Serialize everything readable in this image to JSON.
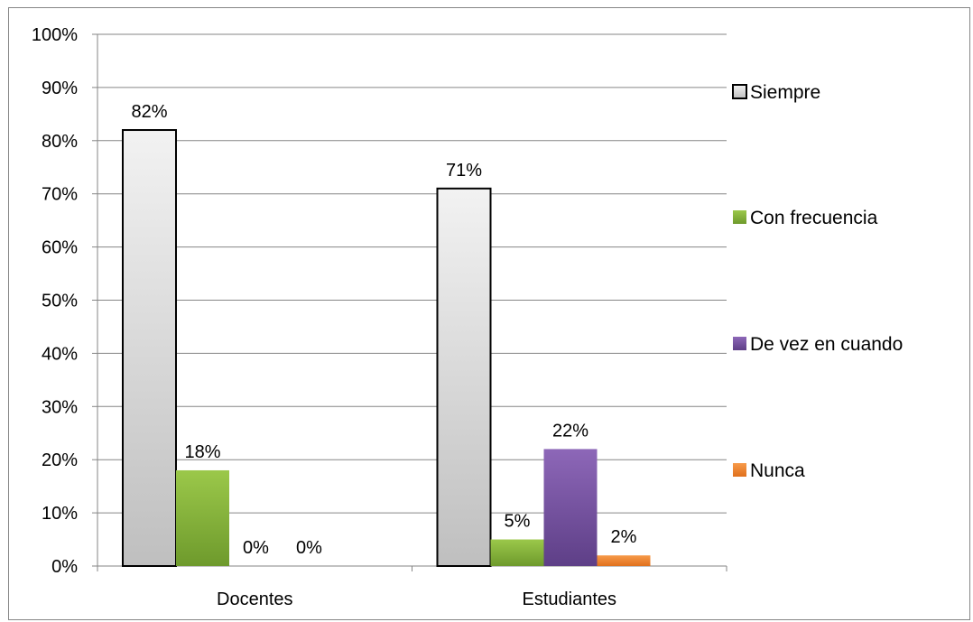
{
  "chart_data": {
    "type": "bar",
    "categories": [
      "Docentes",
      "Estudiantes"
    ],
    "series": [
      {
        "name": "Siempre",
        "values": [
          82,
          71
        ],
        "labels": [
          "82%",
          "71%"
        ],
        "color": "#d9d9d9"
      },
      {
        "name": "Con frecuencia",
        "values": [
          18,
          5
        ],
        "labels": [
          "18%",
          "5%"
        ],
        "color": "#8db53c"
      },
      {
        "name": "De vez en cuando",
        "values": [
          0,
          22
        ],
        "labels": [
          "0%",
          "22%"
        ],
        "color": "#7a56a4"
      },
      {
        "name": "Nunca",
        "values": [
          0,
          2
        ],
        "labels": [
          "0%",
          "2%"
        ],
        "color": "#f0862e"
      }
    ],
    "ylim": [
      0,
      100
    ],
    "yticks": [
      "0%",
      "10%",
      "20%",
      "30%",
      "40%",
      "50%",
      "60%",
      "70%",
      "80%",
      "90%",
      "100%"
    ],
    "grid": true,
    "legend_position": "right"
  }
}
